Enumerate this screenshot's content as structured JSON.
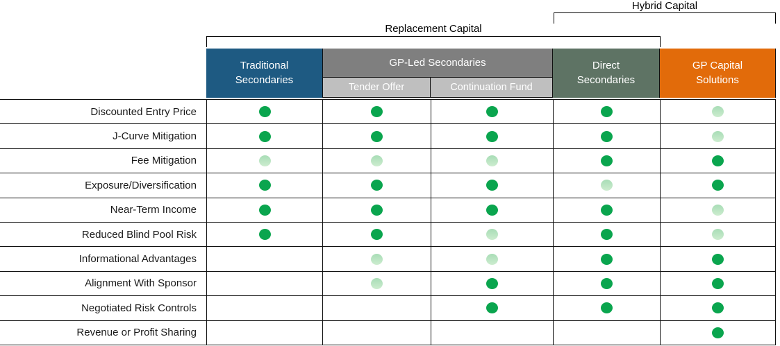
{
  "brackets": {
    "hybrid_label": "Hybrid Capital",
    "replacement_label": "Replacement Capital"
  },
  "header": {
    "columns": [
      {
        "label": "Traditional Secondaries",
        "color": "#1e5a82"
      },
      {
        "label": "GP-Led Secondaries",
        "color": "#7f7f7f",
        "subcolumns": [
          {
            "label": "Tender Offer",
            "color": "#bfbfbf"
          },
          {
            "label": "Continuation Fund",
            "color": "#bfbfbf"
          }
        ]
      },
      {
        "label": "Direct Secondaries",
        "color": "#5e7364"
      },
      {
        "label": "GP Capital Solutions",
        "color": "#e26b0a"
      }
    ]
  },
  "colors": {
    "dot_full": "#0aa54e",
    "dot_partial_top": "#a8ddb6",
    "dot_partial_bottom": "#cdeccf",
    "grid_border": "#111111"
  },
  "matrix": {
    "column_keys": [
      "Traditional Secondaries",
      "Tender Offer",
      "Continuation Fund",
      "Direct Secondaries",
      "GP Capital Solutions"
    ],
    "rows": [
      {
        "label": "Discounted Entry Price",
        "cells": [
          "full",
          "full",
          "full",
          "full",
          "partial"
        ]
      },
      {
        "label": "J-Curve Mitigation",
        "cells": [
          "full",
          "full",
          "full",
          "full",
          "partial"
        ]
      },
      {
        "label": "Fee Mitigation",
        "cells": [
          "partial",
          "partial",
          "partial",
          "full",
          "full"
        ]
      },
      {
        "label": "Exposure/Diversification",
        "cells": [
          "full",
          "full",
          "full",
          "partial",
          "full"
        ]
      },
      {
        "label": "Near-Term Income",
        "cells": [
          "full",
          "full",
          "full",
          "full",
          "partial"
        ]
      },
      {
        "label": "Reduced Blind Pool Risk",
        "cells": [
          "full",
          "full",
          "partial",
          "full",
          "partial"
        ]
      },
      {
        "label": "Informational Advantages",
        "cells": [
          "none",
          "partial",
          "partial",
          "full",
          "full"
        ]
      },
      {
        "label": "Alignment With Sponsor",
        "cells": [
          "none",
          "partial",
          "full",
          "full",
          "full"
        ]
      },
      {
        "label": "Negotiated Risk Controls",
        "cells": [
          "none",
          "none",
          "full",
          "full",
          "full"
        ]
      },
      {
        "label": "Revenue or Profit Sharing",
        "cells": [
          "none",
          "none",
          "none",
          "none",
          "full"
        ]
      }
    ]
  }
}
